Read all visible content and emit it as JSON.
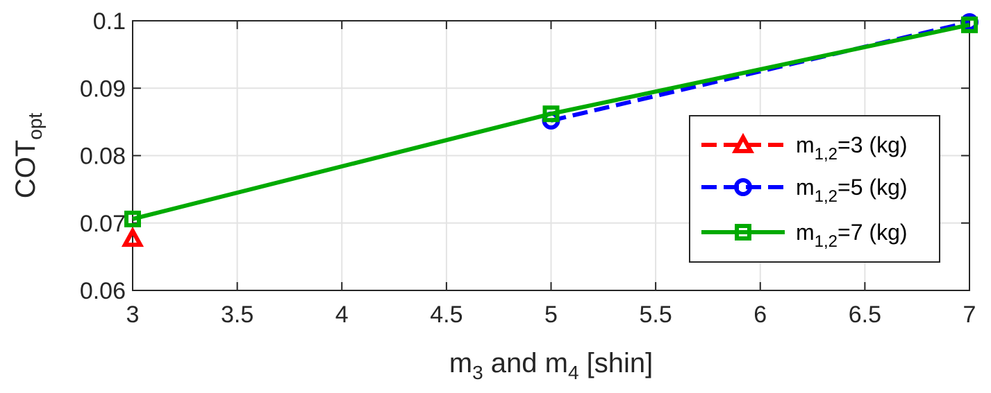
{
  "chart_data": {
    "type": "line",
    "xlabel": {
      "main": "m",
      "sub1": "3",
      "mid": " and m",
      "sub2": "4",
      "tail": " [shin]"
    },
    "ylabel": {
      "main": "COT",
      "sub": "opt"
    },
    "xlim": [
      3,
      7
    ],
    "ylim": [
      0.06,
      0.1
    ],
    "xticks": [
      3,
      3.5,
      4,
      4.5,
      5,
      5.5,
      6,
      6.5,
      7
    ],
    "xtick_labels": [
      "3",
      "3.5",
      "4",
      "4.5",
      "5",
      "5.5",
      "6",
      "6.5",
      "7"
    ],
    "yticks": [
      0.06,
      0.07,
      0.08,
      0.09,
      0.1
    ],
    "ytick_labels": [
      "0.06",
      "0.07",
      "0.08",
      "0.09",
      "0.1"
    ],
    "grid": true,
    "legend_position": "right",
    "series": [
      {
        "name": {
          "main": "m",
          "sub": "1,2",
          "tail": "=3 (kg)"
        },
        "color": "#ff0000",
        "dash": "dashed",
        "marker": "triangle",
        "x": [
          3
        ],
        "y": [
          0.0677
        ]
      },
      {
        "name": {
          "main": "m",
          "sub": "1,2",
          "tail": "=5 (kg)"
        },
        "color": "#0000ff",
        "dash": "dashed",
        "marker": "circle",
        "x": [
          5,
          7
        ],
        "y": [
          0.0852,
          0.0998
        ]
      },
      {
        "name": {
          "main": "m",
          "sub": "1,2",
          "tail": "=7 (kg)"
        },
        "color": "#00aa00",
        "dash": "solid",
        "marker": "square",
        "x": [
          3,
          5,
          7
        ],
        "y": [
          0.0706,
          0.0862,
          0.0994
        ]
      }
    ]
  }
}
